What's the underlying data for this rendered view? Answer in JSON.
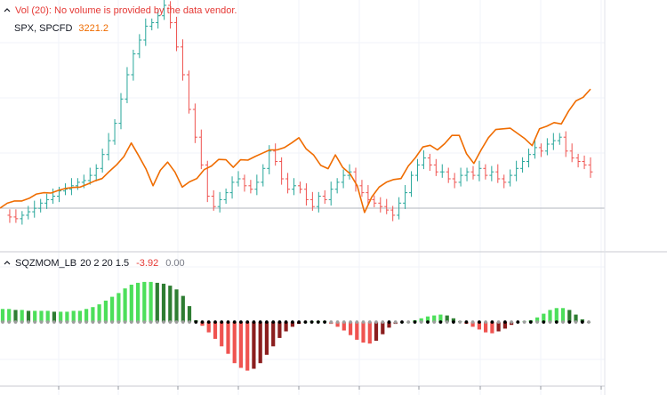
{
  "legend": {
    "volume_warning": "Vol (20): No volume is provided by the data vendor.",
    "symbol": "SPX, SPCFD",
    "price": "3221.2"
  },
  "indicator": {
    "name": "SQZMOM_LB",
    "params": "20 2 20 1.5",
    "value1": "-3.92",
    "value2": "0.00"
  },
  "colors": {
    "up_bar": "#26a69a",
    "down_bar": "#ef5350",
    "line": "#ef6c00",
    "mom_lime": "#4cdf5a",
    "mom_green": "#2e7d32",
    "mom_red": "#ef5350",
    "mom_maroon": "#8b1e1e",
    "zero_dot_black": "#000000",
    "zero_dot_gray": "#9e9e9e"
  },
  "chart_data": [
    {
      "type": "line",
      "series": [
        {
          "name": "SPX, SPCFD",
          "values": [
            0.0,
            1.5,
            2.2,
            2.2,
            3.0,
            4.3,
            4.7,
            4.6,
            5.4,
            6.0,
            6.3,
            6.4,
            7.3,
            8.3,
            9.0,
            11.2,
            13.2,
            15.7,
            19.8,
            16.0,
            12.0,
            6.8,
            11.5,
            14.0,
            11.0,
            6.4,
            8.0,
            9.0,
            11.7,
            12.8,
            14.8,
            14.7,
            12.4,
            14.7,
            14.6,
            15.7,
            16.7,
            17.7,
            17.7,
            18.4,
            19.8,
            21.4,
            18.0,
            16.2,
            13.0,
            12.0,
            16.2,
            12.4,
            10.5,
            6.8,
            -1.3,
            3.4,
            6.4,
            7.9,
            8.7,
            9.0,
            12.8,
            15.4,
            18.6,
            19.1,
            17.7,
            19.6,
            22.1,
            22.1,
            16.5,
            13.6,
            17.7,
            21.4,
            23.9,
            24.1,
            24.3,
            22.7,
            21.1,
            19.0,
            24.1,
            24.9,
            26.0,
            25.6,
            29.5,
            32.6,
            33.7,
            36.2
          ]
        }
      ]
    },
    {
      "type": "bar",
      "title": "SQZMOM_LB 20 2 20 1.5",
      "values": [
        14,
        14,
        13,
        13,
        12,
        12,
        12,
        12,
        11,
        11,
        11,
        12,
        12,
        14,
        16,
        19,
        23,
        27,
        31,
        36,
        40,
        42,
        43,
        43,
        42,
        41,
        39,
        35,
        28,
        17,
        2,
        -4,
        -11,
        -18,
        -26,
        -34,
        -44,
        -49,
        -52,
        -50,
        -44,
        -35,
        -26,
        -17,
        -10,
        -5,
        -2,
        0,
        1,
        1,
        1,
        -2,
        -5,
        -9,
        -14,
        -19,
        -22,
        -23,
        -20,
        -13,
        -6,
        -2,
        0,
        0,
        2,
        4,
        6,
        7,
        8,
        7,
        4,
        1,
        -2,
        -5,
        -8,
        -11,
        -12,
        -10,
        -7,
        -3,
        0,
        1,
        2,
        5,
        9,
        13,
        15,
        15,
        13,
        8,
        3,
        0
      ]
    }
  ]
}
